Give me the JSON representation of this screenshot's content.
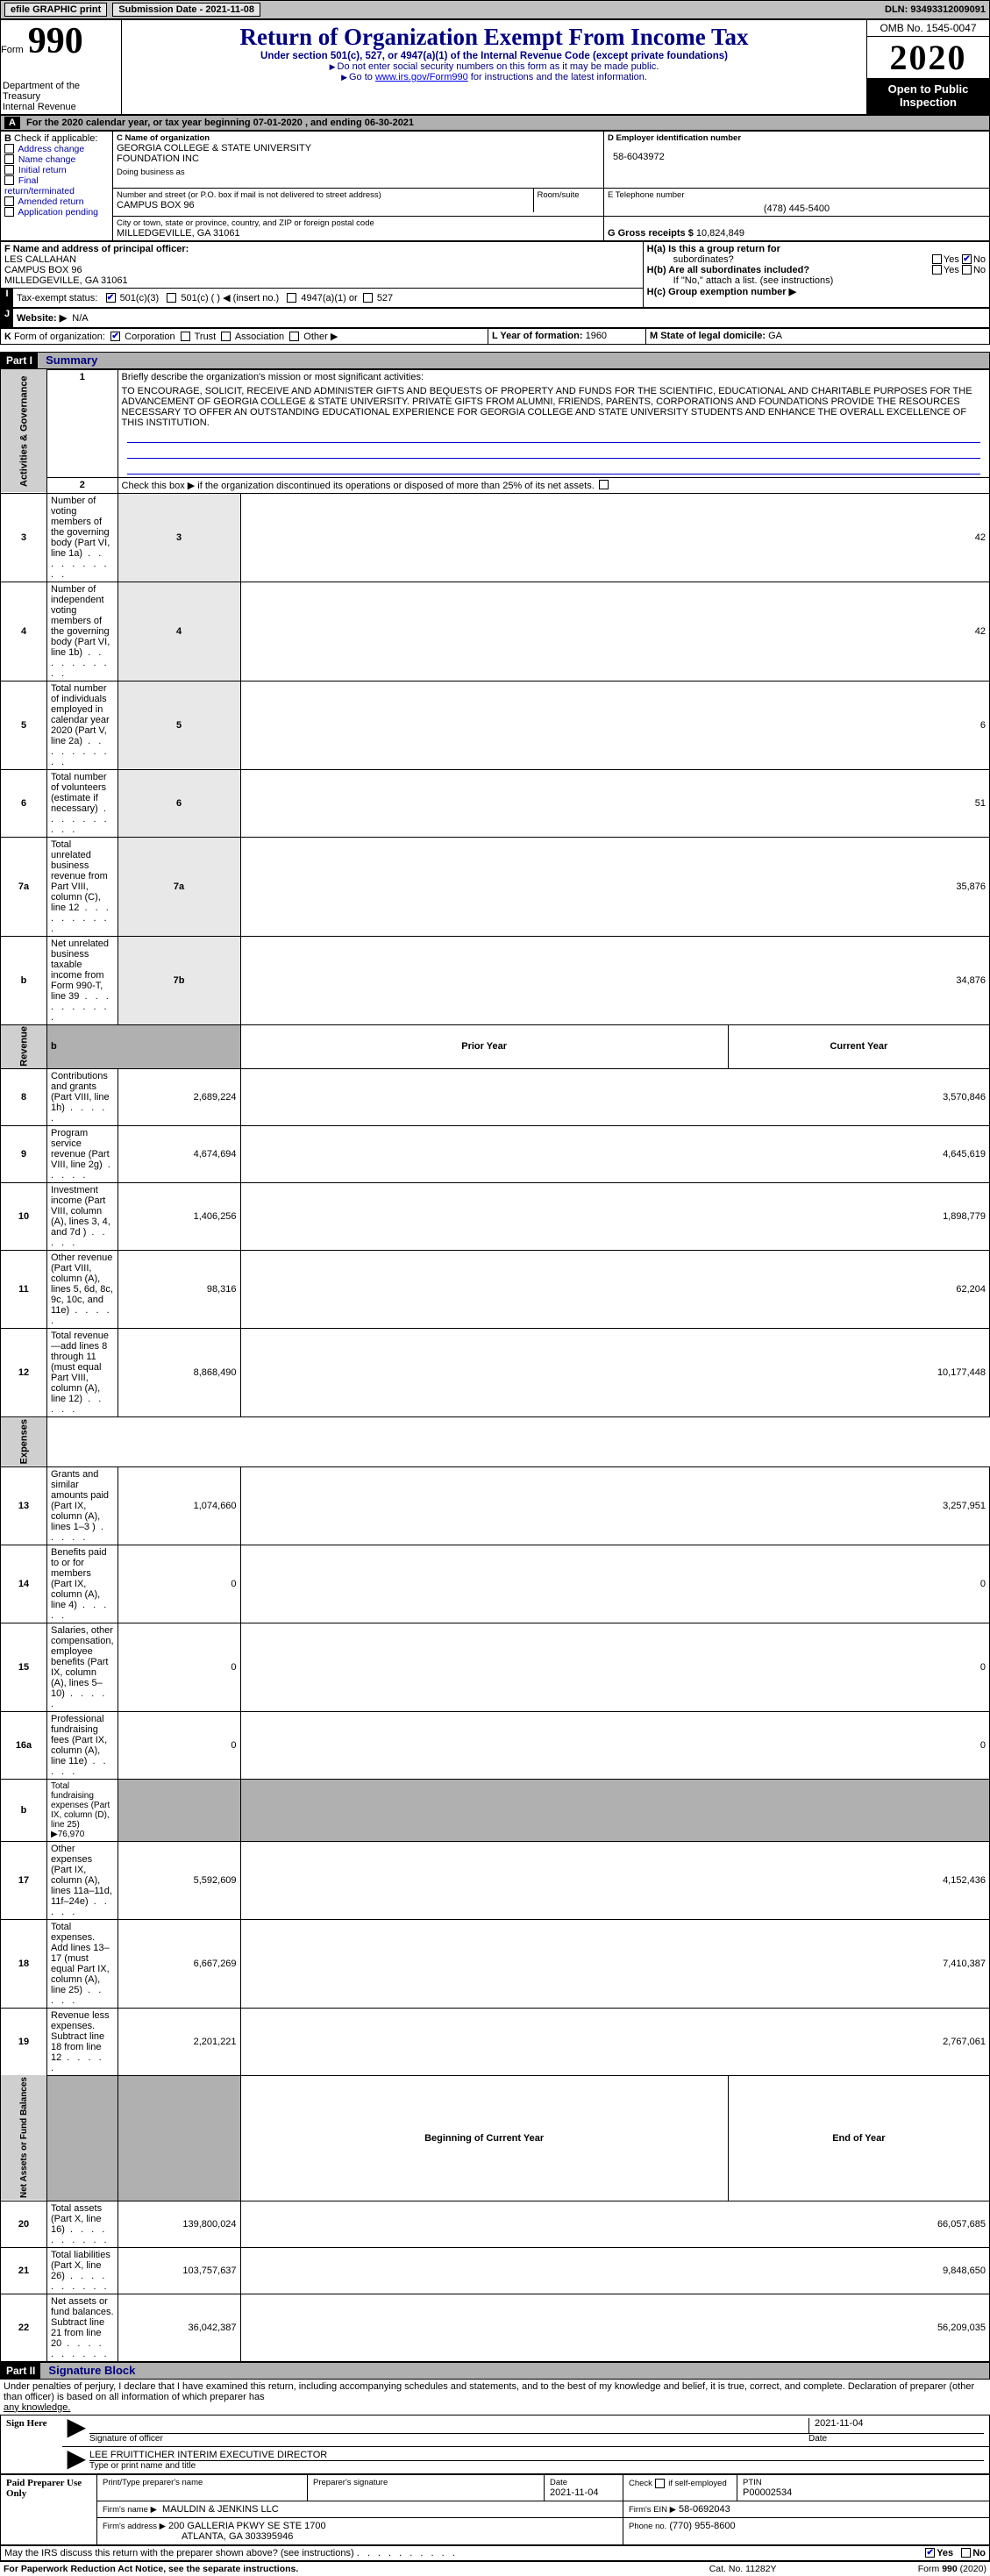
{
  "topbar": {
    "efile": "efile GRAPHIC print",
    "submission": "Submission Date - 2021-11-08",
    "dln": "DLN: 93493312009091"
  },
  "header": {
    "form_word": "Form",
    "form_num": "990",
    "dept1": "Department of the",
    "dept2": "Treasury",
    "dept3": "Internal Revenue",
    "title": "Return of Organization Exempt From Income Tax",
    "sub1": "Under section 501(c), 527, or 4947(a)(1) of the Internal Revenue Code (except private foundations)",
    "sub2": "Do not enter social security numbers on this form as it may be made public.",
    "sub3_a": "Go to ",
    "sub3_link": "www.irs.gov/Form990",
    "sub3_b": " for instructions and the latest information.",
    "omb": "OMB No. 1545-0047",
    "year": "2020",
    "open": "Open to Public Inspection"
  },
  "period": "For the 2020 calendar year, or tax year beginning 07-01-2020   , and ending 06-30-2021",
  "B": {
    "label": "Check if applicable:",
    "items": [
      "Address change",
      "Name change",
      "Initial return",
      "Final return/terminated",
      "Amended return",
      "Application pending"
    ],
    "letter": "B"
  },
  "C": {
    "name_lbl": "C Name of organization",
    "name1": "GEORGIA COLLEGE & STATE UNIVERSITY",
    "name2": "FOUNDATION INC",
    "dba_lbl": "Doing business as",
    "addr_lbl": "Number and street (or P.O. box if mail is not delivered to street address)",
    "room_lbl": "Room/suite",
    "addr": "CAMPUS BOX 96",
    "city_lbl": "City or town, state or province, country, and ZIP or foreign postal code",
    "city": "MILLEDGEVILLE, GA  31061"
  },
  "D": {
    "lbl": "D Employer identification number",
    "val": "58-6043972"
  },
  "E": {
    "lbl": "E Telephone number",
    "val": "(478) 445-5400"
  },
  "G": {
    "lbl": "G Gross receipts $",
    "val": "10,824,849"
  },
  "F": {
    "lbl": "F  Name and address of principal officer:",
    "n1": "LES CALLAHAN",
    "n2": "CAMPUS BOX 96",
    "n3": "MILLEDGEVILLE, GA  31061"
  },
  "H": {
    "a": "H(a)  Is this a group return for",
    "a2": "subordinates?",
    "b": "H(b)  Are all subordinates included?",
    "bnote": "If \"No,\" attach a list. (see instructions)",
    "c": "H(c)  Group exemption number ▶",
    "yes": "Yes",
    "no": "No"
  },
  "I": {
    "lbl": "Tax-exempt status:",
    "opt1": "501(c)(3)",
    "opt2": "501(c) (  ) ◀ (insert no.)",
    "opt3": "4947(a)(1) or",
    "opt4": "527"
  },
  "J": {
    "lbl": "Website: ▶",
    "val": "N/A"
  },
  "K": {
    "lbl": "Form of organization:",
    "o1": "Corporation",
    "o2": "Trust",
    "o3": "Association",
    "o4": "Other ▶"
  },
  "L": {
    "lbl": "L Year of formation:",
    "val": "1960"
  },
  "M": {
    "lbl": "M State of legal domicile:",
    "val": "GA"
  },
  "part1": {
    "hdr": "Part I",
    "title": "Summary"
  },
  "mission_lbl": "Briefly describe the organization's mission or most significant activities:",
  "mission": "TO ENCOURAGE, SOLICIT, RECEIVE AND ADMINISTER GIFTS AND BEQUESTS OF PROPERTY AND FUNDS FOR THE SCIENTIFIC, EDUCATIONAL AND CHARITABLE PURPOSES FOR THE ADVANCEMENT OF GEORGIA COLLEGE & STATE UNIVERSITY. PRIVATE GIFTS FROM ALUMNI, FRIENDS, PARENTS, CORPORATIONS AND FOUNDATIONS PROVIDE THE RESOURCES NECESSARY TO OFFER AN OUTSTANDING EDUCATIONAL EXPERIENCE FOR GEORGIA COLLEGE AND STATE UNIVERSITY STUDENTS AND ENHANCE THE OVERALL EXCELLENCE OF THIS INSTITUTION.",
  "line2": "Check this box ▶       if the organization discontinued its operations or disposed of more than 25% of its net assets.",
  "gov_lines": [
    {
      "n": "3",
      "t": "Number of voting members of the governing body (Part VI, line 1a)",
      "c": "3",
      "v": "42"
    },
    {
      "n": "4",
      "t": "Number of independent voting members of the governing body (Part VI, line 1b)",
      "c": "4",
      "v": "42"
    },
    {
      "n": "5",
      "t": "Total number of individuals employed in calendar year 2020 (Part V, line 2a)",
      "c": "5",
      "v": "6"
    },
    {
      "n": "6",
      "t": "Total number of volunteers (estimate if necessary)",
      "c": "6",
      "v": "51"
    },
    {
      "n": "7a",
      "t": "Total unrelated business revenue from Part VIII, column (C), line 12",
      "c": "7a",
      "v": "35,876"
    },
    {
      "n": "b",
      "t": "Net unrelated business taxable income from Form 990-T, line 39",
      "c": "7b",
      "v": "34,876"
    }
  ],
  "vlabels": {
    "gov": "Activities & Governance",
    "rev": "Revenue",
    "exp": "Expenses",
    "net": "Net Assets or Fund Balances"
  },
  "col_hdrs": {
    "py": "Prior Year",
    "cy": "Current Year",
    "boy": "Beginning of Current Year",
    "eoy": "End of Year"
  },
  "rev": [
    {
      "n": "8",
      "t": "Contributions and grants (Part VIII, line 1h)",
      "p": "2,689,224",
      "c": "3,570,846"
    },
    {
      "n": "9",
      "t": "Program service revenue (Part VIII, line 2g)",
      "p": "4,674,694",
      "c": "4,645,619"
    },
    {
      "n": "10",
      "t": "Investment income (Part VIII, column (A), lines 3, 4, and 7d )",
      "p": "1,406,256",
      "c": "1,898,779"
    },
    {
      "n": "11",
      "t": "Other revenue (Part VIII, column (A), lines 5, 6d, 8c, 9c, 10c, and 11e)",
      "p": "98,316",
      "c": "62,204"
    },
    {
      "n": "12",
      "t": "Total revenue—add lines 8 through 11 (must equal Part VIII, column (A), line 12)",
      "p": "8,868,490",
      "c": "10,177,448"
    }
  ],
  "exp": [
    {
      "n": "13",
      "t": "Grants and similar amounts paid (Part IX, column (A), lines 1–3 )",
      "p": "1,074,660",
      "c": "3,257,951"
    },
    {
      "n": "14",
      "t": "Benefits paid to or for members (Part IX, column (A), line 4)",
      "p": "0",
      "c": "0"
    },
    {
      "n": "15",
      "t": "Salaries, other compensation, employee benefits (Part IX, column (A), lines 5–10)",
      "p": "0",
      "c": "0"
    },
    {
      "n": "16a",
      "t": "Professional fundraising fees (Part IX, column (A), line 11e)",
      "p": "0",
      "c": "0"
    },
    {
      "n": "b",
      "t": "Total fundraising expenses (Part IX, column (D), line 25) ▶76,970",
      "p": "",
      "c": "",
      "shade": true
    },
    {
      "n": "17",
      "t": "Other expenses (Part IX, column (A), lines 11a–11d, 11f–24e)",
      "p": "5,592,609",
      "c": "4,152,436"
    },
    {
      "n": "18",
      "t": "Total expenses. Add lines 13–17 (must equal Part IX, column (A), line 25)",
      "p": "6,667,269",
      "c": "7,410,387"
    },
    {
      "n": "19",
      "t": "Revenue less expenses. Subtract line 18 from line 12",
      "p": "2,201,221",
      "c": "2,767,061"
    }
  ],
  "net": [
    {
      "n": "20",
      "t": "Total assets (Part X, line 16)",
      "p": "139,800,024",
      "c": "66,057,685"
    },
    {
      "n": "21",
      "t": "Total liabilities (Part X, line 26)",
      "p": "103,757,637",
      "c": "9,848,650"
    },
    {
      "n": "22",
      "t": "Net assets or fund balances. Subtract line 21 from line 20",
      "p": "36,042,387",
      "c": "56,209,035"
    }
  ],
  "part2": {
    "hdr": "Part II",
    "title": "Signature Block"
  },
  "sig": {
    "decl": "Under penalties of perjury, I declare that I have examined this return, including accompanying schedules and statements, and to the best of my knowledge and belief, it is true, correct, and complete. Declaration of preparer (other than officer) is based on all information of which preparer has ",
    "decl2": "any knowledge.",
    "sign_here": "Sign Here",
    "sig_officer": "Signature of officer",
    "date1": "2021-11-04",
    "name_title": "LEE FRUITTICHER  INTERIM EXECUTIVE DIRECTOR",
    "type_name": "Type or print name and title",
    "date_lbl": "Date",
    "paid": "Paid Preparer Use Only",
    "prep_name_lbl": "Print/Type preparer's name",
    "prep_sig_lbl": "Preparer's signature",
    "date2": "2021-11-04",
    "check_if": "Check         if self-employed",
    "ptin_lbl": "PTIN",
    "ptin": "P00002534",
    "firm_name_lbl": "Firm's name    ▶",
    "firm_name": "MAULDIN & JENKINS LLC",
    "firm_ein_lbl": "Firm's EIN ▶",
    "firm_ein": "58-0692043",
    "firm_addr_lbl": "Firm's address ▶",
    "firm_addr1": "200 GALLERIA PKWY SE STE 1700",
    "firm_addr2": "ATLANTA, GA  303395946",
    "phone_lbl": "Phone no.",
    "phone": "(770) 955-8600",
    "discuss": "May the IRS discuss this return with the preparer shown above? (see instructions)",
    "yes": "Yes",
    "no": "No"
  },
  "footer": {
    "left": "For Paperwork Reduction Act Notice, see the separate instructions.",
    "mid": "Cat. No. 11282Y",
    "right": "Form 990 (2020)"
  }
}
